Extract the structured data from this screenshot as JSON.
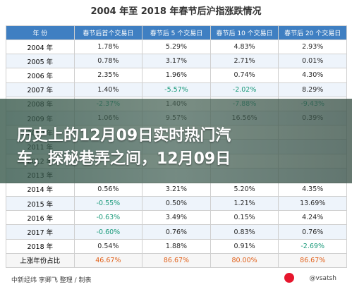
{
  "title": "2004 年至 2018 年春节后沪指涨跌情况",
  "table": {
    "headers": [
      "年  份",
      "春节后首个交易日",
      "春节后 5 个交易日",
      "春节后 10 个交易日",
      "春节后 20 个交易日"
    ],
    "rows": [
      {
        "year": "2004 年",
        "c1": "1.78%",
        "c2": "5.29%",
        "c3": "4.83%",
        "c4": "2.93%"
      },
      {
        "year": "2005 年",
        "c1": "0.78%",
        "c2": "3.17%",
        "c3": "2.71%",
        "c4": "0.01%"
      },
      {
        "year": "2006 年",
        "c1": "2.35%",
        "c2": "1.96%",
        "c3": "0.74%",
        "c4": "4.30%"
      },
      {
        "year": "2007 年",
        "c1": "1.40%",
        "c2": "-5.57%",
        "c3": "-2.02%",
        "c4": "8.29%"
      },
      {
        "year": "2008 年",
        "c1": "-2.37%",
        "c2": "1.40%",
        "c3": "-7.88%",
        "c4": "-9.43%"
      },
      {
        "year": "2009 年",
        "c1": "1.06%",
        "c2": "9.57%",
        "c3": "16.56%",
        "c4": "0.39%"
      },
      {
        "year": "2010 年",
        "c1": "",
        "c2": "",
        "c3": "",
        "c4": ""
      },
      {
        "year": "2011 年",
        "c1": "",
        "c2": "",
        "c3": "",
        "c4": ""
      },
      {
        "year": "2012 年",
        "c1": "",
        "c2": "",
        "c3": "",
        "c4": ""
      },
      {
        "year": "2013 年",
        "c1": "",
        "c2": "",
        "c3": "",
        "c4": ""
      },
      {
        "year": "2014 年",
        "c1": "0.56%",
        "c2": "3.21%",
        "c3": "5.20%",
        "c4": "4.35%"
      },
      {
        "year": "2015 年",
        "c1": "-0.55%",
        "c2": "0.50%",
        "c3": "1.21%",
        "c4": "13.69%"
      },
      {
        "year": "2016 年",
        "c1": "-0.63%",
        "c2": "3.49%",
        "c3": "0.15%",
        "c4": "4.24%"
      },
      {
        "year": "2017 年",
        "c1": "-0.60%",
        "c2": "0.76%",
        "c3": "0.83%",
        "c4": "0.76%"
      },
      {
        "year": "2018 年",
        "c1": "0.54%",
        "c2": "1.88%",
        "c3": "0.91%",
        "c4": "-2.69%"
      }
    ],
    "summary": {
      "year": "上涨年份占比",
      "c1": "46.67%",
      "c2": "86.67%",
      "c3": "80.00%",
      "c4": "86.67%"
    }
  },
  "overlay_title": "历史上的12月09日实时热门汽\n车，探秘巷弄之间，12月09日",
  "footer": {
    "left": "中新经纬   李卿飞   整理 / 制表",
    "right": "@vsatsh"
  },
  "colors": {
    "header": "#3f7fc2",
    "negative": "#1a9a7a",
    "summary": "#e2621c"
  }
}
